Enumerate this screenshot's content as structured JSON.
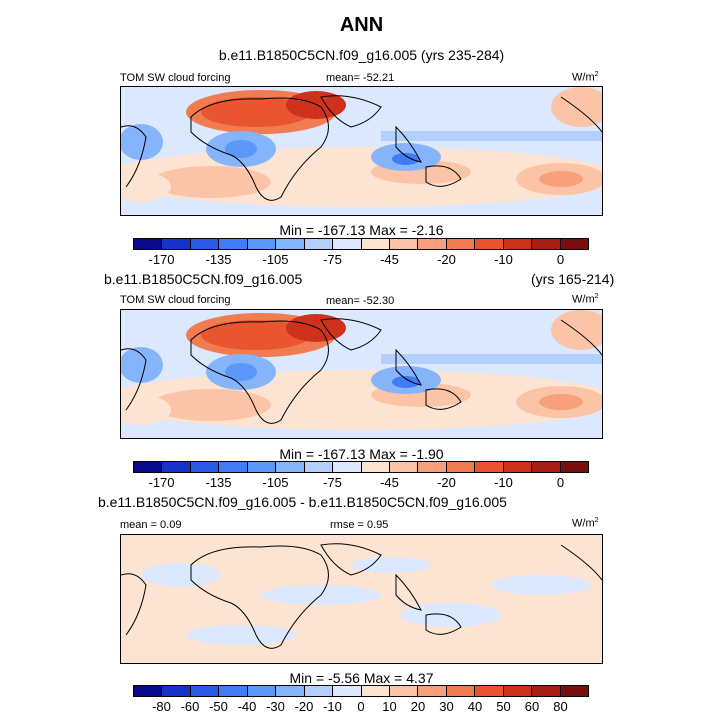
{
  "title": "ANN",
  "colors": {
    "main_scale": [
      "#0a0a8c",
      "#1732c8",
      "#2a5ae6",
      "#3f7cf5",
      "#5c97fa",
      "#86b4fb",
      "#b3d0fc",
      "#dbe8fd",
      "#fde3d2",
      "#fbc4a6",
      "#f7a07b",
      "#f27c52",
      "#e85530",
      "#cf321c",
      "#a51d13",
      "#7a0e0e"
    ],
    "diff_scale": [
      "#0a0a8c",
      "#1732c8",
      "#2a5ae6",
      "#3f7cf5",
      "#5c97fa",
      "#86b4fb",
      "#b3d0fc",
      "#dbe8fd",
      "#fde3d2",
      "#fbc4a6",
      "#f7a07b",
      "#f27c52",
      "#e85530",
      "#cf321c",
      "#a51d13",
      "#7a0e0e"
    ]
  },
  "panels": [
    {
      "case_title": "b.e11.B1850C5CN.f09_g16.005 (yrs 235-284)",
      "var_label": "TOM SW cloud forcing",
      "mean_label": "mean= -52.21",
      "units": "W/m",
      "units_sup": "2",
      "minmax": "Min = -167.13 Max =  -2.16",
      "tick_labels": [
        "-170",
        "-135",
        "-105",
        "-75",
        "-45",
        "-20",
        "-10",
        "0"
      ]
    },
    {
      "case_title": "b.e11.B1850C5CN.f09_g16.005",
      "years": "(yrs 165-214)",
      "var_label": "TOM SW cloud forcing",
      "mean_label": "mean= -52.30",
      "units": "W/m",
      "units_sup": "2",
      "minmax": "Min = -167.13 Max =  -1.90",
      "tick_labels": [
        "-170",
        "-135",
        "-105",
        "-75",
        "-45",
        "-20",
        "-10",
        "0"
      ]
    },
    {
      "case_title": "b.e11.B1850C5CN.f09_g16.005 - b.e11.B1850C5CN.f09_g16.005",
      "mean_label": "mean =  0.09",
      "rmse_label": "rmse =  0.95",
      "units": "W/m",
      "units_sup": "2",
      "minmax": "Min =  -5.56 Max =  4.37",
      "tick_labels": [
        "-80",
        "-60",
        "-50",
        "-40",
        "-30",
        "-20",
        "-10",
        "0",
        "10",
        "20",
        "30",
        "40",
        "50",
        "60",
        "80"
      ]
    }
  ],
  "chart_data": [
    {
      "type": "heatmap",
      "title": "ANN",
      "subtitle": "b.e11.B1850C5CN.f09_g16.005 (yrs 235-284)",
      "variable": "TOM SW cloud forcing",
      "units": "W/m2",
      "mean": -52.21,
      "min": -167.13,
      "max": -2.16,
      "colorbar_levels": [
        -170,
        -135,
        -105,
        -75,
        -45,
        -20,
        -10,
        0
      ]
    },
    {
      "type": "heatmap",
      "subtitle": "b.e11.B1850C5CN.f09_g16.005 (yrs 165-214)",
      "variable": "TOM SW cloud forcing",
      "units": "W/m2",
      "mean": -52.3,
      "min": -167.13,
      "max": -1.9,
      "colorbar_levels": [
        -170,
        -135,
        -105,
        -75,
        -45,
        -20,
        -10,
        0
      ]
    },
    {
      "type": "heatmap",
      "subtitle": "b.e11.B1850C5CN.f09_g16.005 - b.e11.B1850C5CN.f09_g16.005",
      "units": "W/m2",
      "mean": 0.09,
      "rmse": 0.95,
      "min": -5.56,
      "max": 4.37,
      "colorbar_levels": [
        -80,
        -60,
        -50,
        -40,
        -30,
        -20,
        -10,
        0,
        10,
        20,
        30,
        40,
        50,
        60,
        80
      ]
    }
  ]
}
